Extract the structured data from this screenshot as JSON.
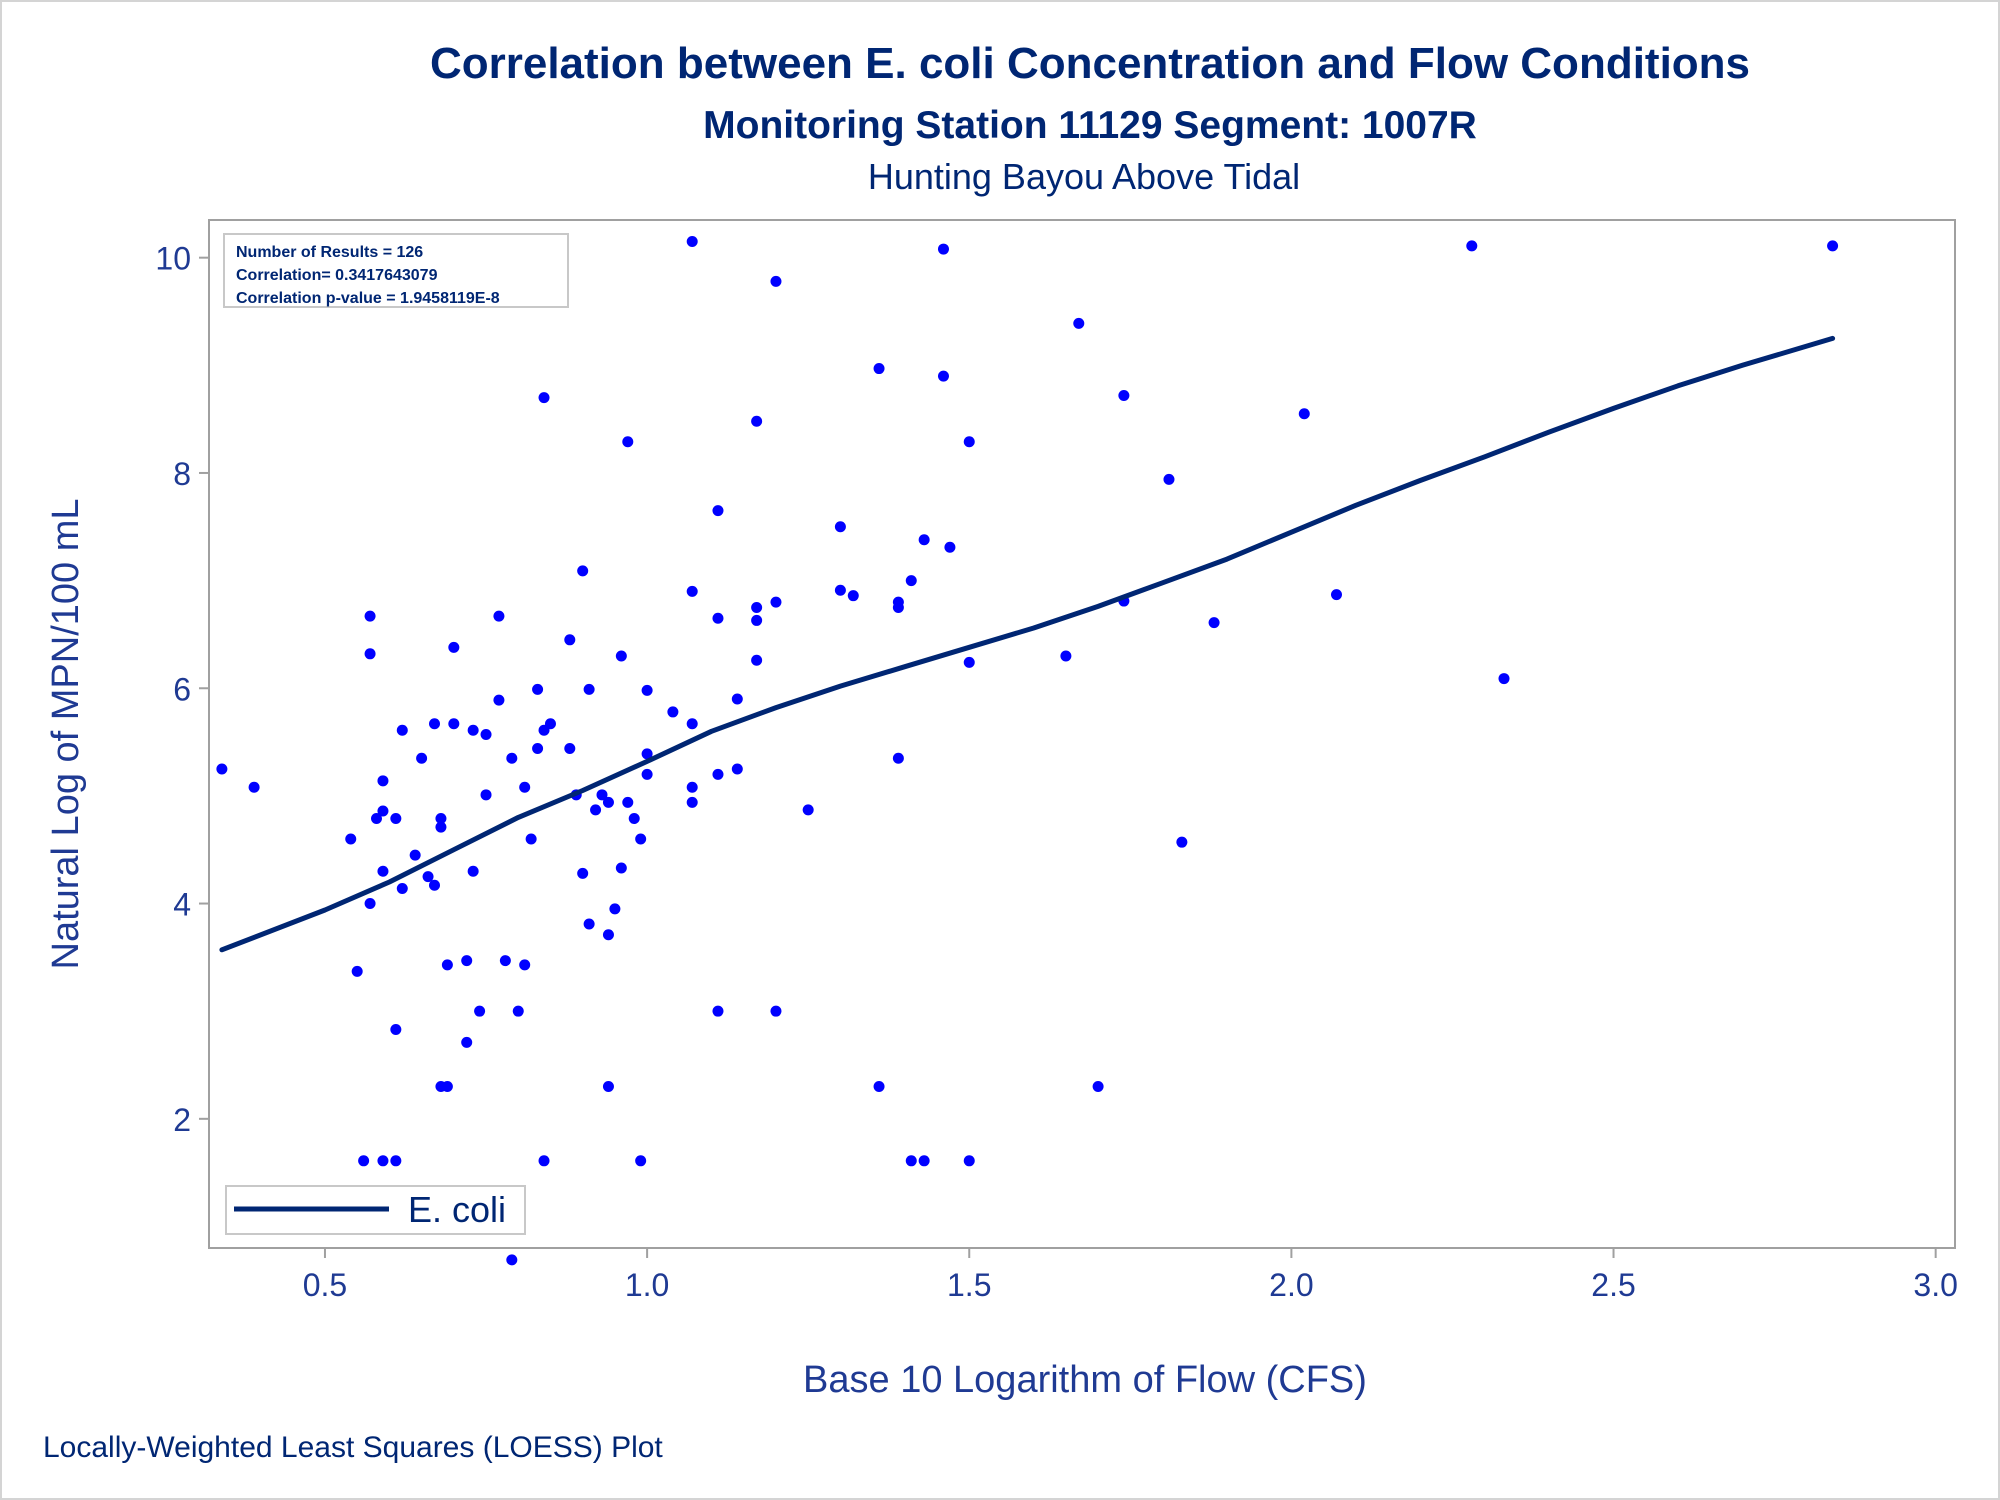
{
  "chart_data": {
    "type": "scatter",
    "title": "Correlation between E. coli Concentration and Flow Conditions",
    "subtitle": "Monitoring Station 11129 Segment: 1007R",
    "subtitle2": "Hunting Bayou Above Tidal",
    "xlabel": "Base 10 Logarithm of Flow (CFS)",
    "ylabel": "Natural Log of MPN/100 mL",
    "xlim": [
      0.32,
      3.03
    ],
    "ylim": [
      0.8,
      10.35
    ],
    "xticks": [
      "0.5",
      "1.0",
      "1.5",
      "2.0",
      "2.5",
      "3.0"
    ],
    "xtick_values": [
      0.5,
      1.0,
      1.5,
      2.0,
      2.5,
      3.0
    ],
    "yticks": [
      "2",
      "4",
      "6",
      "8",
      "10"
    ],
    "ytick_values": [
      2,
      4,
      6,
      8,
      10
    ],
    "grid": false,
    "legend_position": "bottom-left",
    "info_box": {
      "line1": "Number of Results = 126",
      "line2": "Correlation= 0.3417643079",
      "line3": "Correlation p-value = 1.9458119E-8"
    },
    "footnote": "Locally-Weighted Least Squares (LOESS) Plot",
    "series": [
      {
        "name": "",
        "kind": "points",
        "color": "#0000ff",
        "points": [
          [
            0.34,
            5.25
          ],
          [
            0.39,
            5.08
          ],
          [
            0.54,
            4.6
          ],
          [
            0.55,
            3.37
          ],
          [
            0.56,
            1.61
          ],
          [
            0.57,
            6.67
          ],
          [
            0.57,
            6.32
          ],
          [
            0.57,
            4.0
          ],
          [
            0.58,
            4.79
          ],
          [
            0.59,
            5.14
          ],
          [
            0.59,
            4.86
          ],
          [
            0.59,
            4.3
          ],
          [
            0.59,
            1.61
          ],
          [
            0.61,
            4.79
          ],
          [
            0.61,
            2.83
          ],
          [
            0.61,
            1.61
          ],
          [
            0.62,
            5.61
          ],
          [
            0.62,
            4.14
          ],
          [
            0.64,
            4.45
          ],
          [
            0.65,
            5.35
          ],
          [
            0.66,
            4.25
          ],
          [
            0.67,
            5.67
          ],
          [
            0.67,
            4.17
          ],
          [
            0.68,
            4.79
          ],
          [
            0.68,
            4.71
          ],
          [
            0.68,
            2.3
          ],
          [
            0.69,
            3.43
          ],
          [
            0.69,
            2.3
          ],
          [
            0.7,
            6.38
          ],
          [
            0.7,
            5.67
          ],
          [
            0.72,
            3.47
          ],
          [
            0.72,
            2.71
          ],
          [
            0.73,
            4.3
          ],
          [
            0.73,
            5.61
          ],
          [
            0.74,
            3.0
          ],
          [
            0.75,
            5.57
          ],
          [
            0.75,
            5.01
          ],
          [
            0.77,
            6.67
          ],
          [
            0.77,
            5.89
          ],
          [
            0.78,
            3.47
          ],
          [
            0.79,
            5.35
          ],
          [
            0.79,
            0.69
          ],
          [
            0.8,
            3.0
          ],
          [
            0.81,
            5.08
          ],
          [
            0.81,
            3.43
          ],
          [
            0.82,
            4.6
          ],
          [
            0.83,
            5.99
          ],
          [
            0.83,
            5.44
          ],
          [
            0.84,
            8.7
          ],
          [
            0.84,
            5.61
          ],
          [
            0.84,
            1.61
          ],
          [
            0.85,
            5.67
          ],
          [
            0.88,
            6.45
          ],
          [
            0.88,
            5.44
          ],
          [
            0.89,
            5.01
          ],
          [
            0.9,
            7.09
          ],
          [
            0.9,
            4.28
          ],
          [
            0.91,
            5.99
          ],
          [
            0.91,
            3.81
          ],
          [
            0.92,
            4.87
          ],
          [
            0.93,
            5.01
          ],
          [
            0.94,
            4.94
          ],
          [
            0.94,
            3.71
          ],
          [
            0.94,
            2.3
          ],
          [
            0.95,
            3.95
          ],
          [
            0.96,
            6.3
          ],
          [
            0.96,
            4.33
          ],
          [
            0.97,
            8.29
          ],
          [
            0.97,
            4.94
          ],
          [
            0.98,
            4.79
          ],
          [
            0.99,
            4.6
          ],
          [
            0.99,
            1.61
          ],
          [
            1.0,
            5.98
          ],
          [
            1.0,
            5.39
          ],
          [
            1.0,
            5.2
          ],
          [
            1.04,
            5.78
          ],
          [
            1.07,
            10.15
          ],
          [
            1.07,
            6.9
          ],
          [
            1.07,
            5.67
          ],
          [
            1.07,
            5.08
          ],
          [
            1.07,
            4.94
          ],
          [
            1.11,
            7.65
          ],
          [
            1.11,
            6.65
          ],
          [
            1.11,
            5.2
          ],
          [
            1.11,
            3.0
          ],
          [
            1.14,
            5.25
          ],
          [
            1.17,
            8.48
          ],
          [
            1.17,
            6.75
          ],
          [
            1.17,
            6.63
          ],
          [
            1.17,
            6.26
          ],
          [
            1.2,
            9.78
          ],
          [
            1.2,
            6.8
          ],
          [
            1.2,
            3.0
          ],
          [
            1.25,
            4.87
          ],
          [
            1.3,
            7.5
          ],
          [
            1.3,
            6.91
          ],
          [
            1.32,
            6.86
          ],
          [
            1.36,
            8.97
          ],
          [
            1.36,
            2.3
          ],
          [
            1.39,
            6.8
          ],
          [
            1.39,
            6.75
          ],
          [
            1.39,
            5.35
          ],
          [
            1.41,
            7.0
          ],
          [
            1.41,
            1.61
          ],
          [
            1.43,
            7.38
          ],
          [
            1.43,
            1.61
          ],
          [
            1.46,
            10.08
          ],
          [
            1.46,
            8.9
          ],
          [
            1.47,
            7.31
          ],
          [
            1.5,
            8.29
          ],
          [
            1.5,
            6.24
          ],
          [
            1.5,
            1.61
          ],
          [
            1.65,
            6.3
          ],
          [
            1.67,
            9.39
          ],
          [
            1.7,
            2.3
          ],
          [
            1.74,
            8.72
          ],
          [
            1.74,
            6.81
          ],
          [
            1.81,
            7.94
          ],
          [
            1.83,
            4.57
          ],
          [
            1.88,
            6.61
          ],
          [
            2.02,
            8.55
          ],
          [
            2.07,
            6.87
          ],
          [
            2.28,
            10.11
          ],
          [
            2.33,
            6.09
          ],
          [
            2.84,
            10.11
          ],
          [
            1.14,
            5.9
          ]
        ]
      },
      {
        "name": "E. coli",
        "kind": "line",
        "color": "#002673",
        "points": [
          [
            0.34,
            3.57
          ],
          [
            0.5,
            3.94
          ],
          [
            0.6,
            4.2
          ],
          [
            0.7,
            4.5
          ],
          [
            0.8,
            4.8
          ],
          [
            0.9,
            5.05
          ],
          [
            1.0,
            5.32
          ],
          [
            1.1,
            5.6
          ],
          [
            1.2,
            5.82
          ],
          [
            1.3,
            6.02
          ],
          [
            1.4,
            6.2
          ],
          [
            1.5,
            6.38
          ],
          [
            1.6,
            6.56
          ],
          [
            1.7,
            6.76
          ],
          [
            1.8,
            6.98
          ],
          [
            1.9,
            7.2
          ],
          [
            2.0,
            7.45
          ],
          [
            2.1,
            7.7
          ],
          [
            2.2,
            7.93
          ],
          [
            2.3,
            8.15
          ],
          [
            2.4,
            8.38
          ],
          [
            2.5,
            8.6
          ],
          [
            2.6,
            8.81
          ],
          [
            2.7,
            9.0
          ],
          [
            2.84,
            9.25
          ]
        ]
      }
    ]
  }
}
